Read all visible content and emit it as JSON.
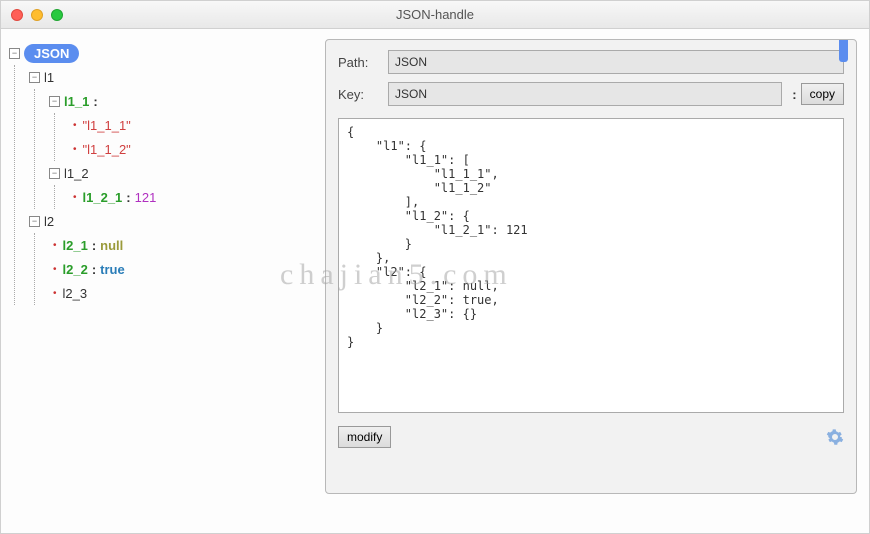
{
  "window": {
    "title": "JSON-handle"
  },
  "watermark": "chajian5.com",
  "colors": {
    "accent": "#5b8def",
    "key_green": "#2a9d2a",
    "val_string": "#d04040",
    "val_num": "#b030c0",
    "val_null": "#9a9a3a",
    "val_bool": "#2a7db8",
    "background": "#f4f4f4",
    "panel_bg": "#f2f2f2"
  },
  "tree": {
    "root_label": "JSON",
    "nodes": [
      {
        "label": "l1",
        "toggle": "−",
        "children": [
          {
            "label": "l1_1",
            "colon": true,
            "key_style": "green",
            "toggle": "−",
            "children": [
              {
                "label": "\"l1_1_1\"",
                "val_style": "string",
                "leaf": true
              },
              {
                "label": "\"l1_1_2\"",
                "val_style": "string",
                "leaf": true
              }
            ]
          },
          {
            "label": "l1_2",
            "key_style": "dark",
            "toggle": "−",
            "children": [
              {
                "label": "l1_2_1",
                "colon": true,
                "key_style": "green",
                "value": "121",
                "val_style": "num",
                "leaf": true
              }
            ]
          }
        ]
      },
      {
        "label": "l2",
        "toggle": "−",
        "children": [
          {
            "label": "l2_1",
            "colon": true,
            "key_style": "green",
            "value": "null",
            "val_style": "null",
            "leaf": true
          },
          {
            "label": "l2_2",
            "colon": true,
            "key_style": "green",
            "value": "true",
            "val_style": "bool",
            "leaf": true
          },
          {
            "label": "l2_3",
            "key_style": "dark",
            "leaf": true
          }
        ]
      }
    ]
  },
  "right": {
    "path_label": "Path:",
    "path_value": "JSON",
    "key_label": "Key:",
    "key_value": "JSON",
    "colon": ":",
    "copy_label": "copy",
    "modify_label": "modify",
    "json_text": "{\n    \"l1\": {\n        \"l1_1\": [\n            \"l1_1_1\",\n            \"l1_1_2\"\n        ],\n        \"l1_2\": {\n            \"l1_2_1\": 121\n        }\n    },\n    \"l2\": {\n        \"l2_1\": null,\n        \"l2_2\": true,\n        \"l2_3\": {}\n    }\n}"
  }
}
